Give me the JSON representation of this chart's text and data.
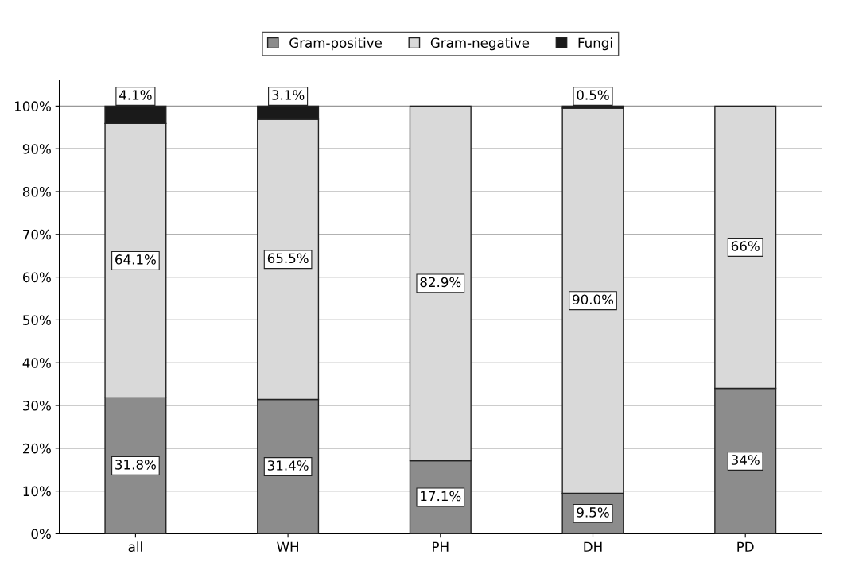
{
  "chart_data": {
    "type": "bar",
    "stacked": true,
    "categories": [
      "all",
      "WH",
      "PH",
      "DH",
      "PD"
    ],
    "series": [
      {
        "name": "Gram-positive",
        "color": "#8c8c8c",
        "values": [
          31.8,
          31.4,
          17.1,
          9.5,
          34
        ],
        "value_labels": [
          "31.8%",
          "31.4%",
          "17.1%",
          "9.5%",
          "34%"
        ]
      },
      {
        "name": "Gram-negative",
        "color": "#d9d9d9",
        "values": [
          64.1,
          65.5,
          82.9,
          90.0,
          66
        ],
        "value_labels": [
          "64.1%",
          "65.5%",
          "82.9%",
          "90.0%",
          "66%"
        ]
      },
      {
        "name": "Fungi",
        "color": "#1a1a1a",
        "values": [
          4.1,
          3.1,
          null,
          0.5,
          null
        ],
        "value_labels": [
          "4.1%",
          "3.1%",
          null,
          "0.5%",
          null
        ]
      }
    ],
    "ylim": [
      0,
      106
    ],
    "yticks": [
      {
        "value": 0,
        "label": "0%"
      },
      {
        "value": 10,
        "label": "10%"
      },
      {
        "value": 20,
        "label": "20%"
      },
      {
        "value": 30,
        "label": "30%"
      },
      {
        "value": 40,
        "label": "40%"
      },
      {
        "value": 50,
        "label": "50%"
      },
      {
        "value": 60,
        "label": "60%"
      },
      {
        "value": 70,
        "label": "70%"
      },
      {
        "value": 80,
        "label": "80%"
      },
      {
        "value": 90,
        "label": "90%"
      },
      {
        "value": 100,
        "label": "100%"
      }
    ],
    "grid": "y",
    "legend": "top"
  }
}
